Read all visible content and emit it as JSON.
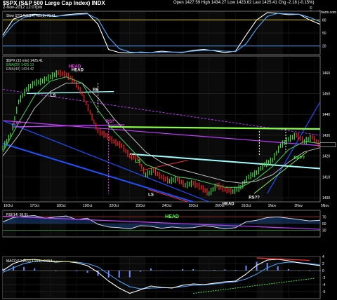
{
  "header": {
    "symbol_title": "$SPX (S&P 500 Large Cap Index) INDX",
    "date_line": "2-Nov-2012 12:07pm",
    "ohlc": "Open 1427.59  High 1434.27  Low 1423.62  Last 1425.41  Chg -2.18 (-0.15%)",
    "source": "© StockCharts.com"
  },
  "chart_data": [
    {
      "type": "line",
      "panel": "slow-stochastic",
      "legend": "Slow STO %K(14) %D(3) 70.41",
      "ylim": [
        0,
        100
      ],
      "ticks": [
        20,
        50,
        80
      ],
      "guide_levels": [
        20,
        80
      ],
      "series": [
        {
          "name": "%K",
          "color": "#ffffff",
          "x": [
            0,
            4,
            8,
            12,
            16,
            20,
            24,
            28,
            32,
            36,
            40,
            44,
            48,
            52,
            56,
            60,
            64,
            68,
            72,
            76,
            80,
            84,
            88,
            92,
            96,
            100,
            104,
            108,
            112,
            116,
            120
          ],
          "values": [
            45,
            82,
            90,
            93,
            90,
            88,
            92,
            94,
            95,
            70,
            12,
            5,
            4,
            6,
            5,
            8,
            6,
            5,
            10,
            12,
            9,
            5,
            8,
            45,
            80,
            97,
            95,
            92,
            93,
            80,
            70
          ]
        },
        {
          "name": "%D",
          "color": "#4fa8ff",
          "x": [
            0,
            4,
            8,
            12,
            16,
            20,
            24,
            28,
            32,
            36,
            40,
            44,
            48,
            52,
            56,
            60,
            64,
            68,
            72,
            76,
            80,
            84,
            88,
            92,
            96,
            100,
            104,
            108,
            112,
            116,
            120
          ],
          "values": [
            40,
            70,
            86,
            91,
            91,
            89,
            90,
            92,
            94,
            82,
            40,
            14,
            6,
            5,
            5,
            6,
            6,
            6,
            8,
            10,
            10,
            8,
            7,
            25,
            60,
            88,
            95,
            94,
            93,
            86,
            76
          ]
        }
      ]
    },
    {
      "type": "line",
      "panel": "price",
      "legend": "$SPX (15 min) 1425.41",
      "legend_ema1": "EMA(20) 1425.13",
      "legend_ema2": "EMA(40) 1424.42",
      "ylim": [
        1398,
        1468
      ],
      "yticks": [
        1400,
        1410,
        1420,
        1430,
        1440,
        1450,
        1460
      ],
      "x_categories": [
        "16Oct",
        "17Oct",
        "18Oct",
        "19Oct",
        "22Oct",
        "23Oct",
        "24Oct",
        "25Oct",
        "26Oct",
        "31Oct",
        "1Nov",
        "2Nov",
        "5Nov"
      ],
      "series": [
        {
          "name": "$SPX (15 min)",
          "color": "#ff3030",
          "x": [
            0,
            3,
            6,
            9,
            12,
            15,
            18,
            21,
            24,
            27,
            30,
            33,
            36,
            39,
            42,
            45,
            48,
            51,
            54,
            57,
            60,
            63,
            66,
            69,
            72,
            75,
            78,
            81,
            84,
            87,
            90,
            93,
            96,
            99,
            102,
            105,
            108,
            111,
            114,
            117,
            120
          ],
          "values": [
            1424,
            1430,
            1446,
            1452,
            1455,
            1456,
            1458,
            1460,
            1459,
            1456,
            1450,
            1441,
            1432,
            1430,
            1427,
            1425,
            1420,
            1419,
            1411,
            1413,
            1410,
            1408,
            1409,
            1406,
            1407,
            1405,
            1402,
            1406,
            1404,
            1403,
            1405,
            1410,
            1412,
            1416,
            1418,
            1425,
            1428,
            1430,
            1427,
            1429,
            1425
          ]
        },
        {
          "name": "EMA(20)",
          "color": "#49d35a",
          "x": [
            0,
            6,
            12,
            18,
            24,
            30,
            36,
            42,
            48,
            54,
            60,
            66,
            72,
            78,
            84,
            90,
            96,
            102,
            108,
            114,
            120
          ],
          "values": [
            1422,
            1436,
            1449,
            1456,
            1458,
            1455,
            1442,
            1432,
            1424,
            1416,
            1413,
            1410,
            1409,
            1407,
            1405,
            1405,
            1409,
            1415,
            1423,
            1427,
            1426
          ]
        },
        {
          "name": "EMA(40)",
          "color": "#c0c0c0",
          "x": [
            0,
            6,
            12,
            18,
            24,
            30,
            36,
            42,
            48,
            54,
            60,
            66,
            72,
            78,
            84,
            90,
            96,
            102,
            108,
            114,
            120
          ],
          "values": [
            1420,
            1430,
            1443,
            1451,
            1455,
            1455,
            1448,
            1438,
            1430,
            1422,
            1417,
            1414,
            1412,
            1410,
            1408,
            1407,
            1408,
            1411,
            1417,
            1422,
            1424
          ]
        }
      ],
      "annotations": [
        {
          "text": "HEAD",
          "color": "#ff40ff",
          "x": 25,
          "y": 1462.5
        },
        {
          "text": "HEAD",
          "color": "#ffffff",
          "x": 26,
          "y": 1460.8
        },
        {
          "text": "LS",
          "color": "#ffffff",
          "x": 18,
          "y": 1448.5
        },
        {
          "text": "RS",
          "color": "#ffffff",
          "x": 34,
          "y": 1451.2
        },
        {
          "text": "LS?",
          "color": "#ff40ff",
          "x": 4,
          "y": 1435.2
        },
        {
          "text": "RS?",
          "color": "#ff40ff",
          "x": 39,
          "y": 1436
        },
        {
          "text": "LS",
          "color": "#44ff44",
          "x": 50,
          "y": 1416.9
        },
        {
          "text": "LS",
          "color": "#ffffff",
          "x": 55,
          "y": 1400.8
        },
        {
          "text": "RS??",
          "color": "#44ff44",
          "x": 110,
          "y": 1418.5
        },
        {
          "text": "RS??",
          "color": "#ffffff",
          "x": 93,
          "y": 1399.5
        },
        {
          "text": "HEAD",
          "color": "#ffffff",
          "x": 83,
          "y": 1396.5
        }
      ]
    },
    {
      "type": "line",
      "panel": "rsi",
      "legend": "RSI(14) 58.91",
      "ylim": [
        10,
        90
      ],
      "ticks": [
        30,
        50,
        70
      ],
      "annotations": [
        {
          "text": "HEAD",
          "color": "#44ff44"
        }
      ],
      "series": [
        {
          "name": "RSI(14)",
          "color": "#ffffff",
          "x": [
            0,
            4,
            8,
            12,
            16,
            20,
            24,
            28,
            32,
            36,
            40,
            44,
            48,
            52,
            56,
            60,
            64,
            68,
            72,
            76,
            80,
            84,
            88,
            92,
            96,
            100,
            104,
            108,
            112,
            116,
            120
          ],
          "values": [
            55,
            68,
            72,
            74,
            66,
            70,
            73,
            62,
            66,
            48,
            40,
            38,
            34,
            44,
            42,
            36,
            40,
            37,
            38,
            44,
            40,
            34,
            38,
            55,
            60,
            68,
            70,
            66,
            62,
            58,
            60
          ]
        }
      ]
    },
    {
      "type": "line",
      "panel": "macd",
      "legend": "MACD(12,26,9) 1.374, -0.554",
      "ylim": [
        -8,
        4
      ],
      "ticks": [
        -6,
        -4,
        -2,
        0,
        2,
        4
      ],
      "series": [
        {
          "name": "MACD",
          "color": "#ffffff",
          "x": [
            0,
            4,
            8,
            12,
            16,
            20,
            24,
            28,
            32,
            36,
            40,
            44,
            48,
            52,
            56,
            60,
            64,
            68,
            72,
            76,
            80,
            84,
            88,
            92,
            96,
            100,
            104,
            108,
            112,
            116,
            120
          ],
          "values": [
            0,
            2,
            3,
            3.2,
            2.8,
            2.4,
            2.6,
            2.2,
            1.4,
            -0.5,
            -3,
            -5,
            -6.5,
            -5.5,
            -4.4,
            -4.8,
            -5,
            -4.2,
            -3.8,
            -4,
            -3.6,
            -3.2,
            -3,
            -1,
            1.5,
            3,
            3.2,
            2.8,
            2.2,
            1.8,
            1.4
          ]
        },
        {
          "name": "Signal",
          "color": "#4fa8ff",
          "x": [
            0,
            4,
            8,
            12,
            16,
            20,
            24,
            28,
            32,
            36,
            40,
            44,
            48,
            52,
            56,
            60,
            64,
            68,
            72,
            76,
            80,
            84,
            88,
            92,
            96,
            100,
            104,
            108,
            112,
            116,
            120
          ],
          "values": [
            -0.5,
            0.8,
            2,
            2.6,
            2.8,
            2.6,
            2.6,
            2.4,
            2,
            1,
            -1,
            -3,
            -4.6,
            -5.2,
            -5,
            -4.9,
            -4.9,
            -4.6,
            -4.2,
            -4.1,
            -3.8,
            -3.5,
            -3.2,
            -2.4,
            -1,
            0.8,
            2,
            2.4,
            2.3,
            2,
            1.6
          ]
        }
      ]
    }
  ],
  "colors": {
    "background": "#000000",
    "panel_border": "#8a8a8a",
    "grid": "#333333",
    "session_shade": "#0b0b0b",
    "price_up": "#44dd44",
    "price_down": "#ff2020",
    "trendline_magenta": "#c040ff",
    "trendline_blue": "#2050ff",
    "trendline_green": "#88ff44",
    "trendline_cyan": "#a0ffff",
    "trendline_yellow": "#d8d000",
    "dashed_white": "#ffffff"
  }
}
